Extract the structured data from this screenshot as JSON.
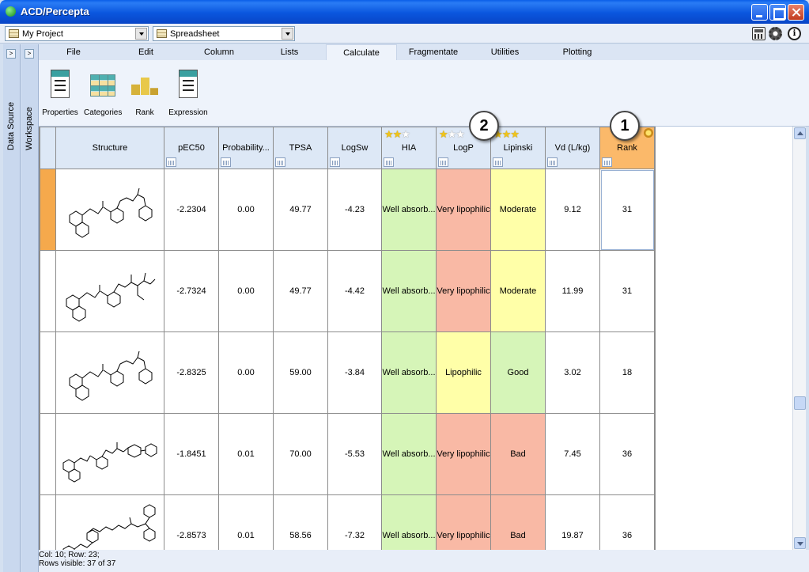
{
  "app": {
    "title": "ACD/Percepta"
  },
  "selectors": {
    "project": "My Project",
    "view": "Spreadsheet"
  },
  "toolbar_icons": {
    "calculator": "calculator-icon",
    "settings": "gear-icon",
    "info": "info-icon",
    "info_glyph": "i"
  },
  "panes": {
    "data_source": "Data Source",
    "workspace": "Workspace"
  },
  "menu": [
    "File",
    "Edit",
    "Column",
    "Lists",
    "Calculate",
    "Fragmentate",
    "Utilities",
    "Plotting"
  ],
  "menu_active": "Calculate",
  "ribbon": [
    {
      "label": "Properties",
      "icon": "properties-icon"
    },
    {
      "label": "Categories",
      "icon": "categories-icon"
    },
    {
      "label": "Rank",
      "icon": "rank-icon"
    },
    {
      "label": "Expression",
      "icon": "expression-icon"
    }
  ],
  "ribbon_icon_text": {
    "badge": "MV",
    "lines": [
      "1.21",
      "2.03",
      "..."
    ]
  },
  "columns": [
    {
      "label": "Structure"
    },
    {
      "label": "pEC50"
    },
    {
      "label": "Probability..."
    },
    {
      "label": "TPSA"
    },
    {
      "label": "LogSw"
    },
    {
      "label": "HIA",
      "stars": 2
    },
    {
      "label": "LogP",
      "stars": 1
    },
    {
      "label": "Lipinski",
      "stars": 3
    },
    {
      "label": "Vd (L/kg)"
    },
    {
      "label": "Rank"
    }
  ],
  "rows": [
    {
      "pec50": "-2.2304",
      "prob": "0.00",
      "tpsa": "49.77",
      "logsw": "-4.23",
      "hia": "Well absorb...",
      "logp": "Very lipophilic",
      "logp_class": "bad",
      "lipinski": "Moderate",
      "lipinski_class": "mod",
      "vd": "9.12",
      "rank": "31"
    },
    {
      "pec50": "-2.7324",
      "prob": "0.00",
      "tpsa": "49.77",
      "logsw": "-4.42",
      "hia": "Well absorb...",
      "logp": "Very lipophilic",
      "logp_class": "bad",
      "lipinski": "Moderate",
      "lipinski_class": "mod",
      "vd": "11.99",
      "rank": "31"
    },
    {
      "pec50": "-2.8325",
      "prob": "0.00",
      "tpsa": "59.00",
      "logsw": "-3.84",
      "hia": "Well absorb...",
      "logp": "Lipophilic",
      "logp_class": "mod",
      "lipinski": "Good",
      "lipinski_class": "good",
      "vd": "3.02",
      "rank": "18"
    },
    {
      "pec50": "-1.8451",
      "prob": "0.01",
      "tpsa": "70.00",
      "logsw": "-5.53",
      "hia": "Well absorb...",
      "logp": "Very lipophilic",
      "logp_class": "bad",
      "lipinski": "Bad",
      "lipinski_class": "bad",
      "vd": "7.45",
      "rank": "36"
    },
    {
      "pec50": "-2.8573",
      "prob": "0.01",
      "tpsa": "58.56",
      "logsw": "-7.32",
      "hia": "Well absorb...",
      "logp": "Very lipophilic",
      "logp_class": "bad",
      "lipinski": "Bad",
      "lipinski_class": "bad",
      "vd": "19.87",
      "rank": "36"
    }
  ],
  "status": {
    "position": "Col: 10; Row: 23;",
    "rows_visible": "Rows visible: 37 of 37"
  },
  "callouts": [
    "1",
    "2"
  ],
  "colors": {
    "good": "#d6f5b8",
    "moderate": "#ffffa8",
    "bad": "#f9b9a5",
    "rank_header": "#fbb96a",
    "selected_row": "#f5a94c"
  }
}
